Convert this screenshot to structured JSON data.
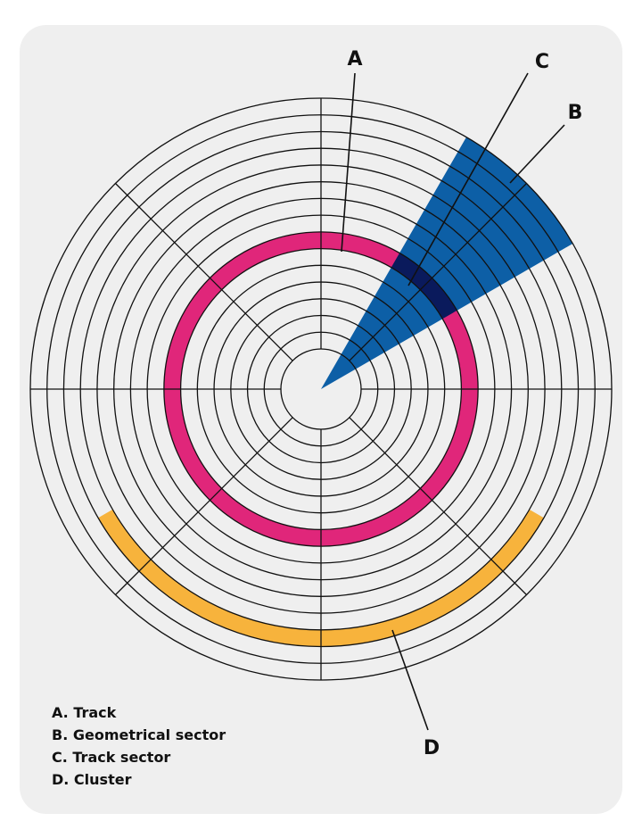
{
  "disk": {
    "track_count": 15,
    "sector_count": 8,
    "colors": {
      "background": "#efefef",
      "line": "#111111",
      "track_highlight": "#e0267a",
      "geometrical_sector": "#0d5fa6",
      "track_sector": "#0a1a5c",
      "cluster": "#f7b33c"
    }
  },
  "callouts": {
    "a": "A",
    "b": "B",
    "c": "C",
    "d": "D"
  },
  "legend": [
    {
      "text": "A. Track"
    },
    {
      "text": "B. Geometrical sector"
    },
    {
      "text": "C. Track sector"
    },
    {
      "text": "D. Cluster"
    }
  ]
}
